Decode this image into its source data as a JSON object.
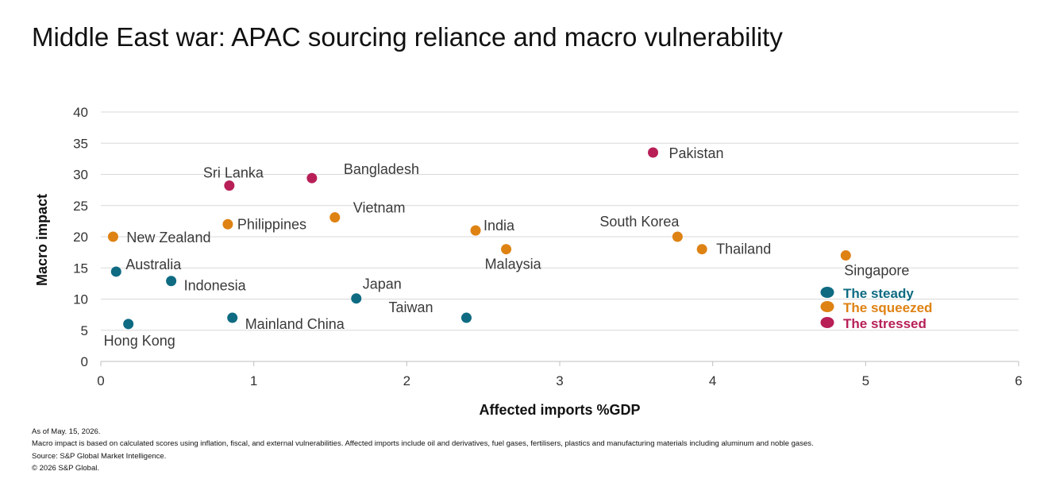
{
  "title": "Middle East war: APAC sourcing reliance and macro vulnerability",
  "notes": [
    "As of May. 15, 2026.",
    "Macro impact is based on calculated scores using inflation, fiscal, and external vulnerabilities. Affected imports include oil and derivatives, fuel gases, fertilisers, plastics and manufacturing materials including aluminum and noble gases.",
    "Source: S&P Global Market Intelligence.",
    "© 2026 S&P Global."
  ],
  "chart_data": {
    "type": "scatter",
    "title": "Middle East war: APAC sourcing reliance and macro vulnerability",
    "xlabel": "Affected imports %GDP",
    "ylabel": "Macro impact",
    "xlim": [
      0,
      6
    ],
    "ylim": [
      0,
      40
    ],
    "xticks": [
      "0",
      "1",
      "2",
      "3",
      "4",
      "5",
      "6"
    ],
    "yticks": [
      "0",
      "5",
      "10",
      "15",
      "20",
      "25",
      "30",
      "35",
      "40"
    ],
    "grid": "horizontal",
    "legend_position": "right",
    "series": [
      {
        "name": "The steady",
        "color": "#0e6b82",
        "points": [
          {
            "label": "Australia",
            "x": 0.1,
            "y": 14.4
          },
          {
            "label": "Indonesia",
            "x": 0.46,
            "y": 12.9
          },
          {
            "label": "Hong Kong",
            "x": 0.18,
            "y": 6.0
          },
          {
            "label": "Mainland China",
            "x": 0.86,
            "y": 7.0
          },
          {
            "label": "Japan",
            "x": 1.67,
            "y": 10.1
          },
          {
            "label": "Taiwan",
            "x": 2.39,
            "y": 7.0
          }
        ]
      },
      {
        "name": "The squeezed",
        "color": "#de8213",
        "points": [
          {
            "label": "New Zealand",
            "x": 0.08,
            "y": 20.0
          },
          {
            "label": "Philippines",
            "x": 0.83,
            "y": 22.0
          },
          {
            "label": "Vietnam",
            "x": 1.53,
            "y": 23.1
          },
          {
            "label": "India",
            "x": 2.45,
            "y": 21.0
          },
          {
            "label": "Malaysia",
            "x": 2.65,
            "y": 18.0
          },
          {
            "label": "South Korea",
            "x": 3.77,
            "y": 20.0
          },
          {
            "label": "Thailand",
            "x": 3.93,
            "y": 18.0
          },
          {
            "label": "Singapore",
            "x": 4.87,
            "y": 17.0
          }
        ]
      },
      {
        "name": "The stressed",
        "color": "#b81f57",
        "points": [
          {
            "label": "Sri Lanka",
            "x": 0.84,
            "y": 28.2
          },
          {
            "label": "Bangladesh",
            "x": 1.38,
            "y": 29.4
          },
          {
            "label": "Pakistan",
            "x": 3.61,
            "y": 33.5
          }
        ]
      }
    ]
  }
}
